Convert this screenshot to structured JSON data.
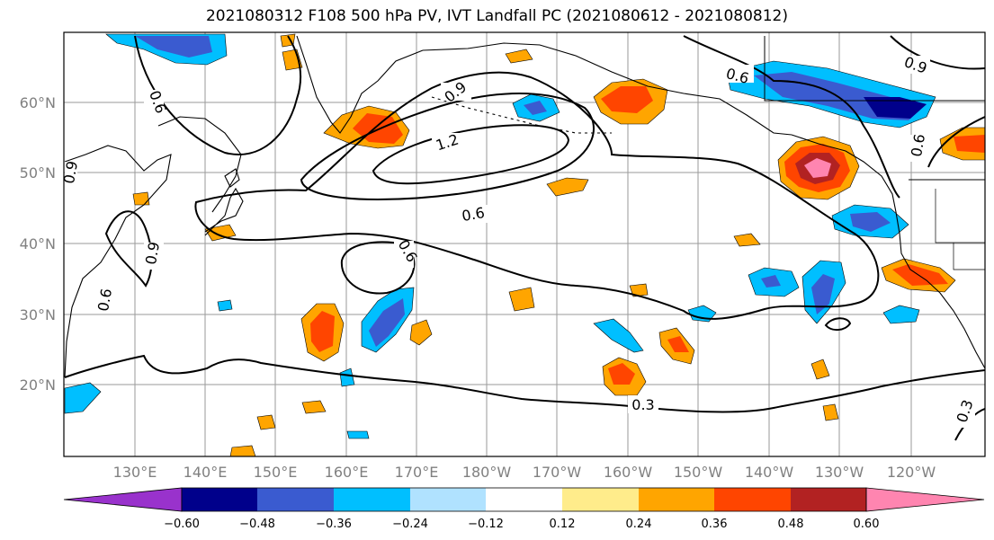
{
  "title": "2021080312 F108 500 hPa PV, IVT Landfall PC (2021080612 - 2021080812)",
  "lat_labels": [
    "60°N",
    "50°N",
    "40°N",
    "30°N",
    "20°N"
  ],
  "lon_labels": [
    "130°E",
    "140°E",
    "150°E",
    "160°E",
    "170°E",
    "180°W",
    "170°W",
    "160°W",
    "150°W",
    "140°W",
    "130°W",
    "120°W"
  ],
  "contour_labels": [
    "1.2",
    "0.9",
    "0.6",
    "0.6",
    "0.6",
    "0.6",
    "0.9",
    "0.6",
    "0.9",
    "0.9",
    "0.6",
    "0.3",
    "0.3"
  ],
  "colorbar": {
    "ticks": [
      "−0.60",
      "−0.48",
      "−0.36",
      "−0.24",
      "−0.12",
      "0.12",
      "0.24",
      "0.36",
      "0.48",
      "0.60"
    ],
    "colors": [
      "#9932cc",
      "#00008b",
      "#3a5bd0",
      "#00bfff",
      "#b0e2ff",
      "#ffffff",
      "#ffec8b",
      "#ffa500",
      "#ff4500",
      "#b22222",
      "#ff85b0"
    ]
  },
  "colors": {
    "land_outline": "#000000",
    "grid": "#808080",
    "contour": "#000000"
  }
}
